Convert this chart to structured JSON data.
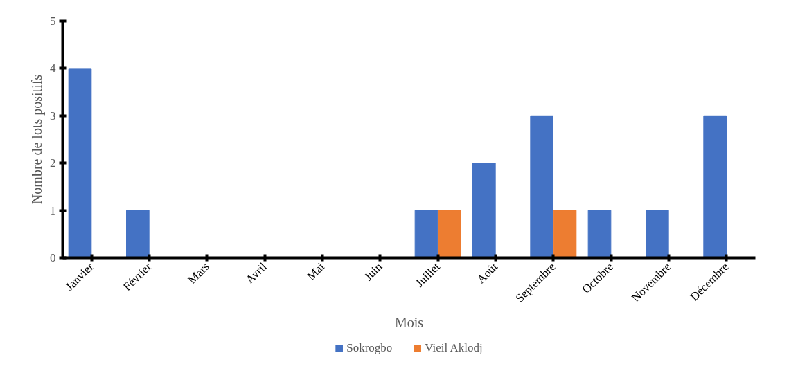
{
  "chart_data": {
    "type": "bar",
    "xlabel": "Mois",
    "ylabel": "Nombre de lots positifs",
    "categories": [
      "Janvier",
      "Février",
      "Mars",
      "Avril",
      "Mai",
      "Juin",
      "Juillet",
      "Août",
      "Septembre",
      "Octobre",
      "Novembre",
      "Décembre"
    ],
    "series": [
      {
        "name": "Sokrogbo",
        "color": "#4472c4",
        "values": [
          4,
          1,
          0,
          0,
          0,
          0,
          1,
          2,
          3,
          1,
          1,
          3
        ]
      },
      {
        "name": "Vieil Aklodj",
        "color": "#ed7d31",
        "values": [
          0,
          0,
          0,
          0,
          0,
          0,
          1,
          0,
          1,
          0,
          0,
          0
        ]
      }
    ],
    "ylim": [
      0,
      5
    ],
    "yticks": [
      0,
      1,
      2,
      3,
      4,
      5
    ],
    "grid": false,
    "legend": "bottom"
  }
}
